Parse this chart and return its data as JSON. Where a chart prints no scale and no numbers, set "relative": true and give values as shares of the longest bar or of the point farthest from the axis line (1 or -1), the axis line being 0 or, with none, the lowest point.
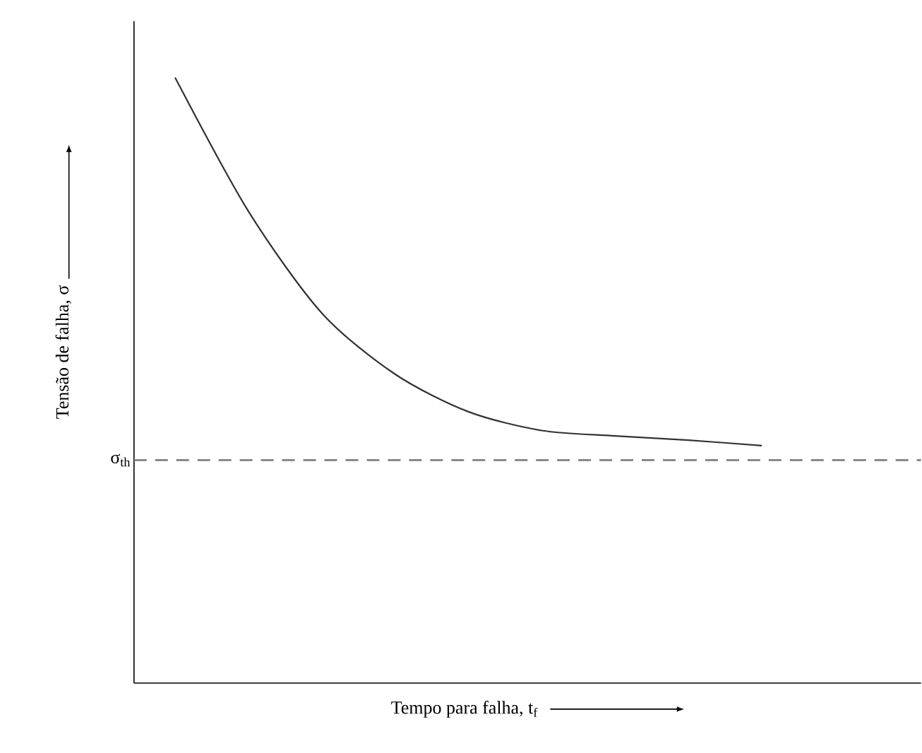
{
  "chart_data": {
    "type": "line",
    "relative": true,
    "categories": [
      null,
      null,
      null,
      null,
      null,
      null,
      null,
      null,
      null
    ],
    "values": [
      1.0,
      0.779,
      0.611,
      0.51,
      0.448,
      0.417,
      0.408,
      0.401,
      0.392
    ],
    "color": "#333333",
    "xlabel": "Tempo para falha, t$_{f}$",
    "ylabel": "Tensão de falha, σ",
    "ref_lines": [
      {
        "axis": "y",
        "value": 0.368,
        "label": "σ$_{th}$",
        "color": "#808080",
        "line_style": "dashed"
      }
    ]
  }
}
